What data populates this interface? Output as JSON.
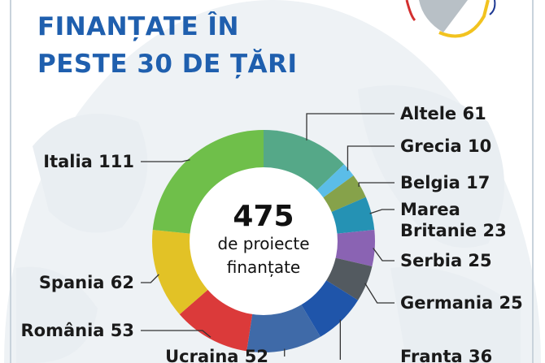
{
  "title_lines": [
    "FINANȚATE  ÎN",
    "PESTE 30 DE ȚĂRI"
  ],
  "chart_data": {
    "type": "pie",
    "donut": true,
    "center_value": "475",
    "center_lines": [
      "de proiecte",
      "finanțate"
    ],
    "slices": [
      {
        "label": "Altele",
        "value": 61,
        "color": "#55a888",
        "side": "right"
      },
      {
        "label": "Grecia",
        "value": 10,
        "color": "#5bbde8",
        "side": "right"
      },
      {
        "label": "Belgia",
        "value": 17,
        "color": "#86a24a",
        "side": "right"
      },
      {
        "label": "Marea Britanie",
        "value": 23,
        "color": "#2592b4",
        "side": "right"
      },
      {
        "label": "Serbia",
        "value": 25,
        "color": "#8a63b3",
        "side": "right"
      },
      {
        "label": "Germania",
        "value": 25,
        "color": "#535a60",
        "side": "right"
      },
      {
        "label": "Franța",
        "value": 36,
        "color": "#1f55aa",
        "side": "right"
      },
      {
        "label": "Ucraina",
        "value": 52,
        "color": "#3f6aa8",
        "side": "left"
      },
      {
        "label": "România",
        "value": 53,
        "color": "#db3a3a",
        "side": "left"
      },
      {
        "label": "Spania",
        "value": 62,
        "color": "#e2c226",
        "side": "left"
      },
      {
        "label": "Italia",
        "value": 111,
        "color": "#6fbf4a",
        "side": "left"
      }
    ]
  },
  "colors": {
    "title": "#1f5fae",
    "map": "#e6ecf1"
  }
}
